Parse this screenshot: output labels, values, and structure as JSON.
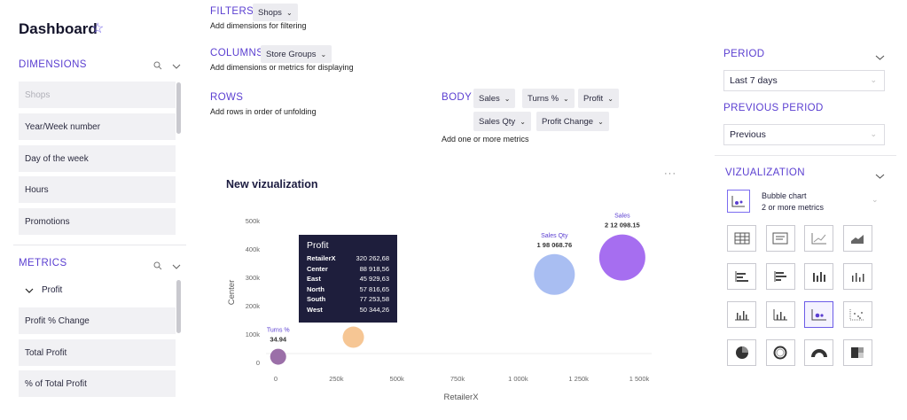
{
  "header": {
    "title": "Dashboard",
    "star_icon": "star-outline-icon"
  },
  "dimensions": {
    "title": "DIMENSIONS",
    "items": [
      "Shops",
      "Year/Week number",
      "Day of the week",
      "Hours",
      "Promotions"
    ]
  },
  "metrics": {
    "title": "METRICS",
    "group_label": "Profit",
    "items": [
      "Profit % Change",
      "Total Profit",
      "% of Total Profit"
    ]
  },
  "filters": {
    "title": "FILTERS",
    "chip": "Shops",
    "hint": "Add dimensions for filtering"
  },
  "columns": {
    "title": "COLUMNS",
    "chip": "Store Groups",
    "hint": "Add dimensions or metrics for displaying"
  },
  "rows": {
    "title": "ROWS",
    "hint": "Add rows in order of unfolding"
  },
  "body": {
    "title": "BODY",
    "chips": [
      "Sales",
      "Turns %",
      "Profit",
      "Sales Qty",
      "Profit Change"
    ],
    "hint": "Add one or more metrics"
  },
  "visualization_panel": {
    "title": "New vizualization",
    "more": "···"
  },
  "period": {
    "title": "PERIOD",
    "value": "Last 7 days"
  },
  "previous_period": {
    "title": "PREVIOUS PERIOD",
    "value": "Previous"
  },
  "vizualization": {
    "title": "VIZUALIZATION",
    "selected_name": "Bubble chart",
    "selected_desc": "2 or more metrics",
    "icons": [
      "table-icon",
      "text-icon",
      "line-chart-icon",
      "area-chart-icon",
      "horizontal-bar-icon",
      "horizontal-bar-centered-icon",
      "vertical-bar-icon",
      "vertical-bar-thin-icon",
      "bar-grouped-icon",
      "bar-small-icon",
      "bubble-chart-icon",
      "scatter-icon",
      "pie-icon",
      "donut-icon",
      "gauge-icon",
      "treemap-icon"
    ]
  },
  "tooltip": {
    "title": "Profit",
    "rows": [
      {
        "k": "RetailerX",
        "v": "320 262,68"
      },
      {
        "k": "Center",
        "v": "88 918,56"
      },
      {
        "k": "East",
        "v": "45 929,63"
      },
      {
        "k": "North",
        "v": "57 816,65"
      },
      {
        "k": "South",
        "v": "77 253,58"
      },
      {
        "k": "West",
        "v": "50 344,26"
      }
    ]
  },
  "chart_data": {
    "type": "scatter",
    "xlabel": "RetailerX",
    "ylabel": "Center",
    "xlim": [
      0,
      1500000
    ],
    "ylim": [
      0,
      500000
    ],
    "x_ticks": [
      "0",
      "250k",
      "500k",
      "750k",
      "1 000k",
      "1 250k",
      "1 500k"
    ],
    "y_ticks": [
      "0",
      "100k",
      "200k",
      "300k",
      "400k",
      "500k"
    ],
    "points": [
      {
        "name": "Turns %",
        "value_label": "34.94",
        "x": 10000,
        "y": 20000,
        "color": "#9b6fa8"
      },
      {
        "name": "Profit",
        "value_label": "",
        "x": 320263,
        "y": 88919,
        "color": "#f6c694"
      },
      {
        "name": "Sales Qty",
        "value_label": "1 98 068.76",
        "x": 1150000,
        "y": 310000,
        "color": "#a9bef2"
      },
      {
        "name": "Sales",
        "value_label": "2 12 098.15",
        "x": 1430000,
        "y": 370000,
        "color": "#a66ef0"
      }
    ]
  }
}
